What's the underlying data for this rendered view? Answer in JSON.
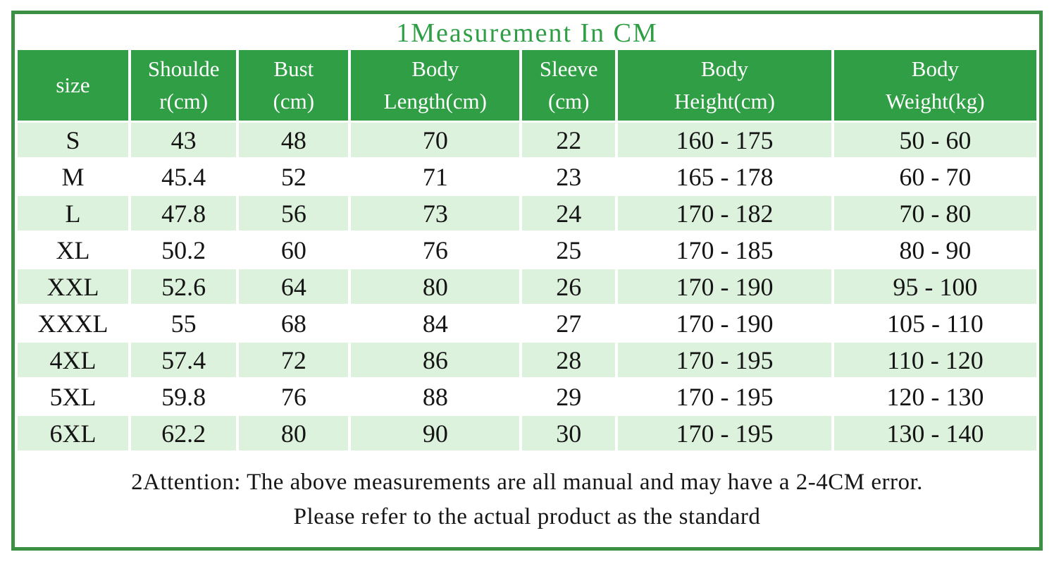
{
  "title": "1Measurement In CM",
  "colors": {
    "accent_green": "#2f9e44",
    "frame_border_green": "#3c9043",
    "row_light_green": "#ddf2dd",
    "header_text": "#ffffff",
    "body_text": "#141414"
  },
  "table": {
    "headers": [
      [
        "size"
      ],
      [
        "Shoulde",
        "r(cm)"
      ],
      [
        "Bust",
        "(cm)"
      ],
      [
        "Body",
        "Length(cm)"
      ],
      [
        "Sleeve",
        "(cm)"
      ],
      [
        "Body",
        "Height(cm)"
      ],
      [
        "Body",
        "Weight(kg)"
      ]
    ]
  },
  "notes": {
    "line1": "2Attention: The above measurements are all manual and may have a 2-4CM error.",
    "line2": "Please refer to the actual product as the standard"
  },
  "chart_data": {
    "type": "table",
    "title": "1Measurement In CM",
    "columns": [
      "size",
      "Shoulder(cm)",
      "Bust(cm)",
      "Body Length(cm)",
      "Sleeve(cm)",
      "Body Height(cm)",
      "Body Weight(kg)"
    ],
    "rows": [
      [
        "S",
        "43",
        "48",
        "70",
        "22",
        "160 - 175",
        "50 - 60"
      ],
      [
        "M",
        "45.4",
        "52",
        "71",
        "23",
        "165 - 178",
        "60 - 70"
      ],
      [
        "L",
        "47.8",
        "56",
        "73",
        "24",
        "170 - 182",
        "70 - 80"
      ],
      [
        "XL",
        "50.2",
        "60",
        "76",
        "25",
        "170 - 185",
        "80 - 90"
      ],
      [
        "XXL",
        "52.6",
        "64",
        "80",
        "26",
        "170 - 190",
        "95 - 100"
      ],
      [
        "XXXL",
        "55",
        "68",
        "84",
        "27",
        "170 - 190",
        "105 - 110"
      ],
      [
        "4XL",
        "57.4",
        "72",
        "86",
        "28",
        "170 - 195",
        "110 - 120"
      ],
      [
        "5XL",
        "59.8",
        "76",
        "88",
        "29",
        "170 - 195",
        "120 - 130"
      ],
      [
        "6XL",
        "62.2",
        "80",
        "90",
        "30",
        "170 - 195",
        "130 - 140"
      ]
    ],
    "notes": [
      "2Attention: The above measurements are all manual and may have a 2-4CM error.",
      "Please refer to the actual product as the standard"
    ]
  }
}
